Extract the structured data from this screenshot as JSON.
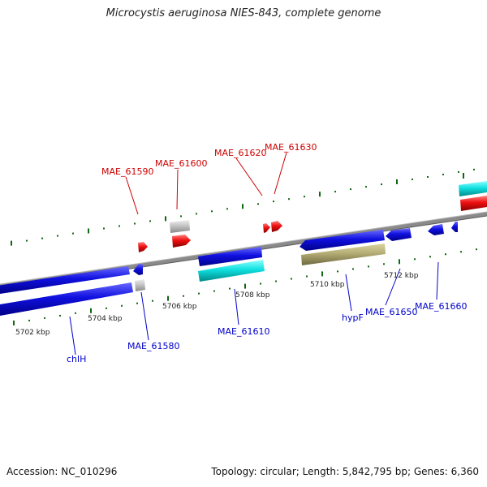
{
  "title": "Microcystis aeruginosa NIES-843, complete genome",
  "footer": {
    "accession": "Accession: NC_010296",
    "summary": "Topology: circular; Length: 5,842,795 bp; Genes: 6,360"
  },
  "scale_labels": [
    "5702 kbp",
    "5704 kbp",
    "5706 kbp",
    "5708 kbp",
    "5710 kbp",
    "5712 kbp"
  ],
  "gene_labels_forward": [
    "MAE_61590",
    "MAE_61600",
    "MAE_61620",
    "MAE_61630"
  ],
  "gene_labels_reverse": [
    "chlH",
    "MAE_61580",
    "MAE_61610",
    "hypF",
    "MAE_61650",
    "MAE_61660"
  ],
  "colors": {
    "forward_label": "#cc0000",
    "reverse_label": "#0000cc",
    "blue_gene": "#1010dd",
    "cyan_gene": "#10dddd",
    "red_gene": "#ee1010",
    "grey_gene": "#c0c0c0",
    "olive_gene": "#b0a870",
    "tick": "#116611",
    "axis": "#808080"
  }
}
